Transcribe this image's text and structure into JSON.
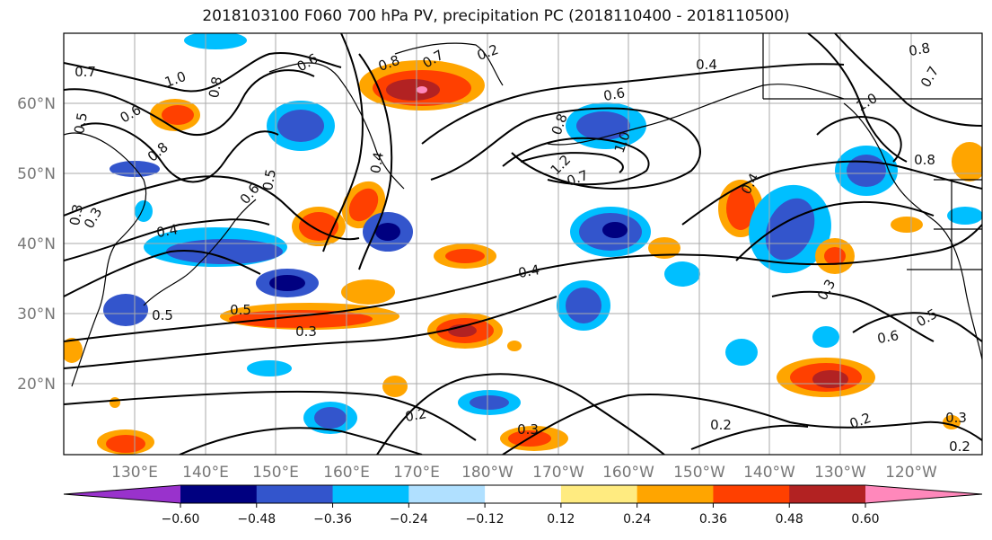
{
  "title": "2018103100 F060 700 hPa PV, precipitation PC (2018110400 - 2018110500)",
  "lat_labels": [
    "60°N",
    "50°N",
    "40°N",
    "30°N",
    "20°N"
  ],
  "lon_labels": [
    "130°E",
    "140°E",
    "150°E",
    "160°E",
    "170°E",
    "180°W",
    "170°W",
    "160°W",
    "150°W",
    "140°W",
    "130°W",
    "120°W"
  ],
  "colorbar": {
    "tick_labels": [
      "−0.60",
      "−0.48",
      "−0.36",
      "−0.24",
      "−0.12",
      "0.12",
      "0.24",
      "0.36",
      "0.48",
      "0.60"
    ],
    "colors": [
      "#9932cc",
      "#000080",
      "#3355cc",
      "#00bfff",
      "#b0e0ff",
      "#ffffff",
      "#ffeb80",
      "#ffa500",
      "#ff4000",
      "#b22222",
      "#ff88bb"
    ]
  },
  "contour_labels": [
    {
      "text": "0.7"
    },
    {
      "text": "1.0"
    },
    {
      "text": "0.6"
    },
    {
      "text": "0.8"
    },
    {
      "text": "0.5"
    },
    {
      "text": "0.6"
    },
    {
      "text": "0.8"
    },
    {
      "text": "0.5"
    },
    {
      "text": "0.6"
    },
    {
      "text": "0.4"
    },
    {
      "text": "0.3"
    },
    {
      "text": "0.5"
    },
    {
      "text": "0.5"
    },
    {
      "text": "0.3"
    },
    {
      "text": "0.8"
    },
    {
      "text": "0.7"
    },
    {
      "text": "0.2"
    },
    {
      "text": "0.4"
    },
    {
      "text": "0.6"
    },
    {
      "text": "0.8"
    },
    {
      "text": "1.2"
    },
    {
      "text": "1.0"
    },
    {
      "text": "0.7"
    },
    {
      "text": "0.4"
    },
    {
      "text": "0.4"
    },
    {
      "text": "0.2"
    },
    {
      "text": "0.3"
    },
    {
      "text": "0.2"
    },
    {
      "text": "0.2"
    },
    {
      "text": "1.0"
    },
    {
      "text": "0.8"
    },
    {
      "text": "0.8"
    },
    {
      "text": "0.7"
    },
    {
      "text": "0.3"
    },
    {
      "text": "0.5"
    },
    {
      "text": "0.6"
    },
    {
      "text": "0.2"
    },
    {
      "text": "0.3"
    },
    {
      "text": "0.3"
    },
    {
      "text": "0.4"
    }
  ]
}
